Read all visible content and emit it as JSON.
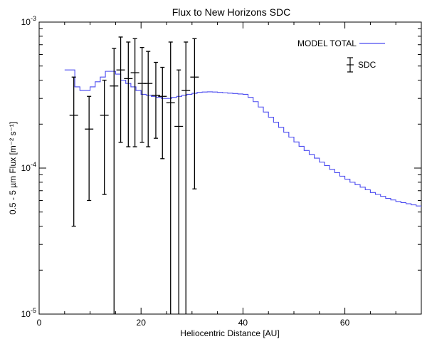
{
  "chart_data": {
    "type": "line",
    "title": "Flux to New Horizons SDC",
    "xlabel": "Heliocentric Distance [AU]",
    "ylabel": "0.5 - 5 µm Flux [m⁻² s⁻¹]",
    "xlim": [
      0,
      75
    ],
    "ylim": [
      1e-05,
      0.001
    ],
    "yscale": "log",
    "x_ticks": [
      0,
      20,
      40,
      60
    ],
    "y_ticks": [
      {
        "value": 1e-05,
        "label": "10-5"
      },
      {
        "value": 0.0001,
        "label": "10-4"
      },
      {
        "value": 0.001,
        "label": "10-3"
      }
    ],
    "grid": false,
    "legend": "top-right",
    "series": [
      {
        "name": "MODEL TOTAL",
        "color": "#4a4af0",
        "style": "step",
        "x": [
          5,
          6,
          7,
          8,
          9,
          10,
          11,
          12,
          13,
          14,
          15,
          16,
          17,
          18,
          19,
          20,
          21,
          22,
          23,
          24,
          25,
          26,
          27,
          28,
          29,
          30,
          31,
          32,
          33,
          34,
          35,
          36,
          37,
          38,
          39,
          40,
          41,
          42,
          43,
          44,
          45,
          46,
          47,
          48,
          49,
          50,
          51,
          52,
          53,
          54,
          55,
          56,
          57,
          58,
          59,
          60,
          61,
          62,
          63,
          64,
          65,
          66,
          67,
          68,
          69,
          70,
          71,
          72,
          73,
          74,
          75
        ],
        "y": [
          0.00047,
          0.00047,
          0.00036,
          0.00034,
          0.00034,
          0.00036,
          0.00039,
          0.00042,
          0.00046,
          0.00046,
          0.00044,
          0.0004,
          0.00038,
          0.00036,
          0.00034,
          0.00032,
          0.000315,
          0.00031,
          0.000305,
          0.0003,
          0.0003,
          0.000305,
          0.00031,
          0.000315,
          0.00032,
          0.000325,
          0.00033,
          0.000332,
          0.000333,
          0.000332,
          0.00033,
          0.000328,
          0.000326,
          0.000324,
          0.000322,
          0.00032,
          0.000305,
          0.000285,
          0.000262,
          0.000242,
          0.000223,
          0.000206,
          0.00019,
          0.000176,
          0.000163,
          0.000151,
          0.000141,
          0.000132,
          0.000124,
          0.000117,
          0.00011,
          0.000104,
          9.8e-05,
          9.3e-05,
          8.8e-05,
          8.4e-05,
          8e-05,
          7.7e-05,
          7.4e-05,
          7.1e-05,
          6.8e-05,
          6.6e-05,
          6.4e-05,
          6.2e-05,
          6.05e-05,
          5.9e-05,
          5.8e-05,
          5.7e-05,
          5.6e-05,
          5.5e-05,
          5.4e-05
        ]
      },
      {
        "name": "SDC",
        "color": "#000000",
        "style": "errorbar",
        "points": [
          {
            "x": 6.8,
            "y": 0.00023,
            "low": 4e-05,
            "high": 0.00042
          },
          {
            "x": 9.8,
            "y": 0.000185,
            "low": 6e-05,
            "high": 0.00031
          },
          {
            "x": 12.8,
            "y": 0.00023,
            "low": 6.6e-05,
            "high": 0.0004
          },
          {
            "x": 14.7,
            "y": 0.000365,
            "low": 1e-05,
            "high": 0.00066
          },
          {
            "x": 16.0,
            "y": 0.00047,
            "low": 0.00015,
            "high": 0.00079
          },
          {
            "x": 17.5,
            "y": 0.00041,
            "low": 0.00014,
            "high": 0.00073
          },
          {
            "x": 18.8,
            "y": 0.00045,
            "low": 0.00014,
            "high": 0.00077
          },
          {
            "x": 20.2,
            "y": 0.00038,
            "low": 0.00015,
            "high": 0.00067
          },
          {
            "x": 21.4,
            "y": 0.00038,
            "low": 0.00014,
            "high": 0.00063
          },
          {
            "x": 22.9,
            "y": 0.000315,
            "low": 0.00016,
            "high": 0.00053
          },
          {
            "x": 24.2,
            "y": 0.00031,
            "low": 0.000116,
            "high": 0.00049
          },
          {
            "x": 25.8,
            "y": 0.00028,
            "low": 1e-05,
            "high": 0.00073
          },
          {
            "x": 27.4,
            "y": 0.000193,
            "low": 1e-05,
            "high": 0.00047
          },
          {
            "x": 28.8,
            "y": 0.00034,
            "low": 1e-05,
            "high": 0.00073
          },
          {
            "x": 30.5,
            "y": 0.00042,
            "low": 7.2e-05,
            "high": 0.00077
          }
        ]
      }
    ]
  }
}
